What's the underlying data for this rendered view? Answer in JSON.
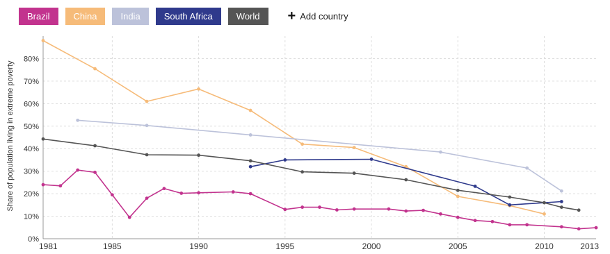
{
  "legend": {
    "items": [
      {
        "label": "Brazil",
        "color": "#c2338e"
      },
      {
        "label": "China",
        "color": "#f6bb79"
      },
      {
        "label": "India",
        "color": "#bcc2da"
      },
      {
        "label": "South Africa",
        "color": "#2f3a8c"
      },
      {
        "label": "World",
        "color": "#555555"
      }
    ],
    "add_icon": "plus-icon",
    "add_label": "Add country"
  },
  "chart_data": {
    "type": "line",
    "title": "",
    "xlabel": "",
    "ylabel": "Share of population living in extreme poverty",
    "xlim": [
      1981,
      2013
    ],
    "ylim": [
      0,
      90
    ],
    "x_ticks": [
      "1981",
      "1985",
      "1990",
      "1995",
      "2000",
      "2005",
      "2010",
      "2013"
    ],
    "y_ticks": [
      "0%",
      "10%",
      "20%",
      "30%",
      "40%",
      "50%",
      "60%",
      "70%",
      "80%"
    ],
    "grid": true,
    "series": [
      {
        "name": "Brazil",
        "color": "#c2338e",
        "points": [
          [
            1981,
            24
          ],
          [
            1982,
            23.5
          ],
          [
            1983,
            30.5
          ],
          [
            1984,
            29.5
          ],
          [
            1985,
            19.5
          ],
          [
            1986,
            9.5
          ],
          [
            1987,
            18
          ],
          [
            1988,
            22.3
          ],
          [
            1989,
            20.2
          ],
          [
            1990,
            20.4
          ],
          [
            1992,
            20.8
          ],
          [
            1993,
            20
          ],
          [
            1995,
            13
          ],
          [
            1996,
            14
          ],
          [
            1997,
            14
          ],
          [
            1998,
            12.8
          ],
          [
            1999,
            13.2
          ],
          [
            2001,
            13.2
          ],
          [
            2002,
            12.3
          ],
          [
            2003,
            12.6
          ],
          [
            2004,
            11
          ],
          [
            2005,
            9.5
          ],
          [
            2006,
            8.1
          ],
          [
            2007,
            7.6
          ],
          [
            2008,
            6.2
          ],
          [
            2009,
            6.2
          ],
          [
            2011,
            5.3
          ],
          [
            2012,
            4.4
          ],
          [
            2013,
            4.9
          ]
        ]
      },
      {
        "name": "China",
        "color": "#f6bb79",
        "points": [
          [
            1981,
            88
          ],
          [
            1984,
            75.5
          ],
          [
            1987,
            61
          ],
          [
            1990,
            66.5
          ],
          [
            1993,
            57
          ],
          [
            1996,
            42
          ],
          [
            1999,
            40.5
          ],
          [
            2002,
            32
          ],
          [
            2005,
            18.8
          ],
          [
            2008,
            14.7
          ],
          [
            2010,
            11
          ]
        ]
      },
      {
        "name": "India",
        "color": "#bcc2da",
        "points": [
          [
            1983,
            52.6
          ],
          [
            1987,
            50.3
          ],
          [
            1993,
            46.1
          ],
          [
            2004,
            38.5
          ],
          [
            2009,
            31.4
          ],
          [
            2011,
            21.2
          ]
        ]
      },
      {
        "name": "South Africa",
        "color": "#2f3a8c",
        "points": [
          [
            1993,
            32
          ],
          [
            1995,
            35
          ],
          [
            2000,
            35.3
          ],
          [
            2006,
            23.3
          ],
          [
            2008,
            15
          ],
          [
            2011,
            16.5
          ]
        ]
      },
      {
        "name": "World",
        "color": "#555555",
        "points": [
          [
            1981,
            44.3
          ],
          [
            1984,
            41.3
          ],
          [
            1987,
            37.3
          ],
          [
            1990,
            37.1
          ],
          [
            1993,
            34.6
          ],
          [
            1996,
            29.7
          ],
          [
            1999,
            29.1
          ],
          [
            2002,
            26.2
          ],
          [
            2005,
            21.5
          ],
          [
            2008,
            18.5
          ],
          [
            2010,
            16
          ],
          [
            2011,
            14
          ],
          [
            2012,
            12.7
          ]
        ]
      }
    ]
  }
}
